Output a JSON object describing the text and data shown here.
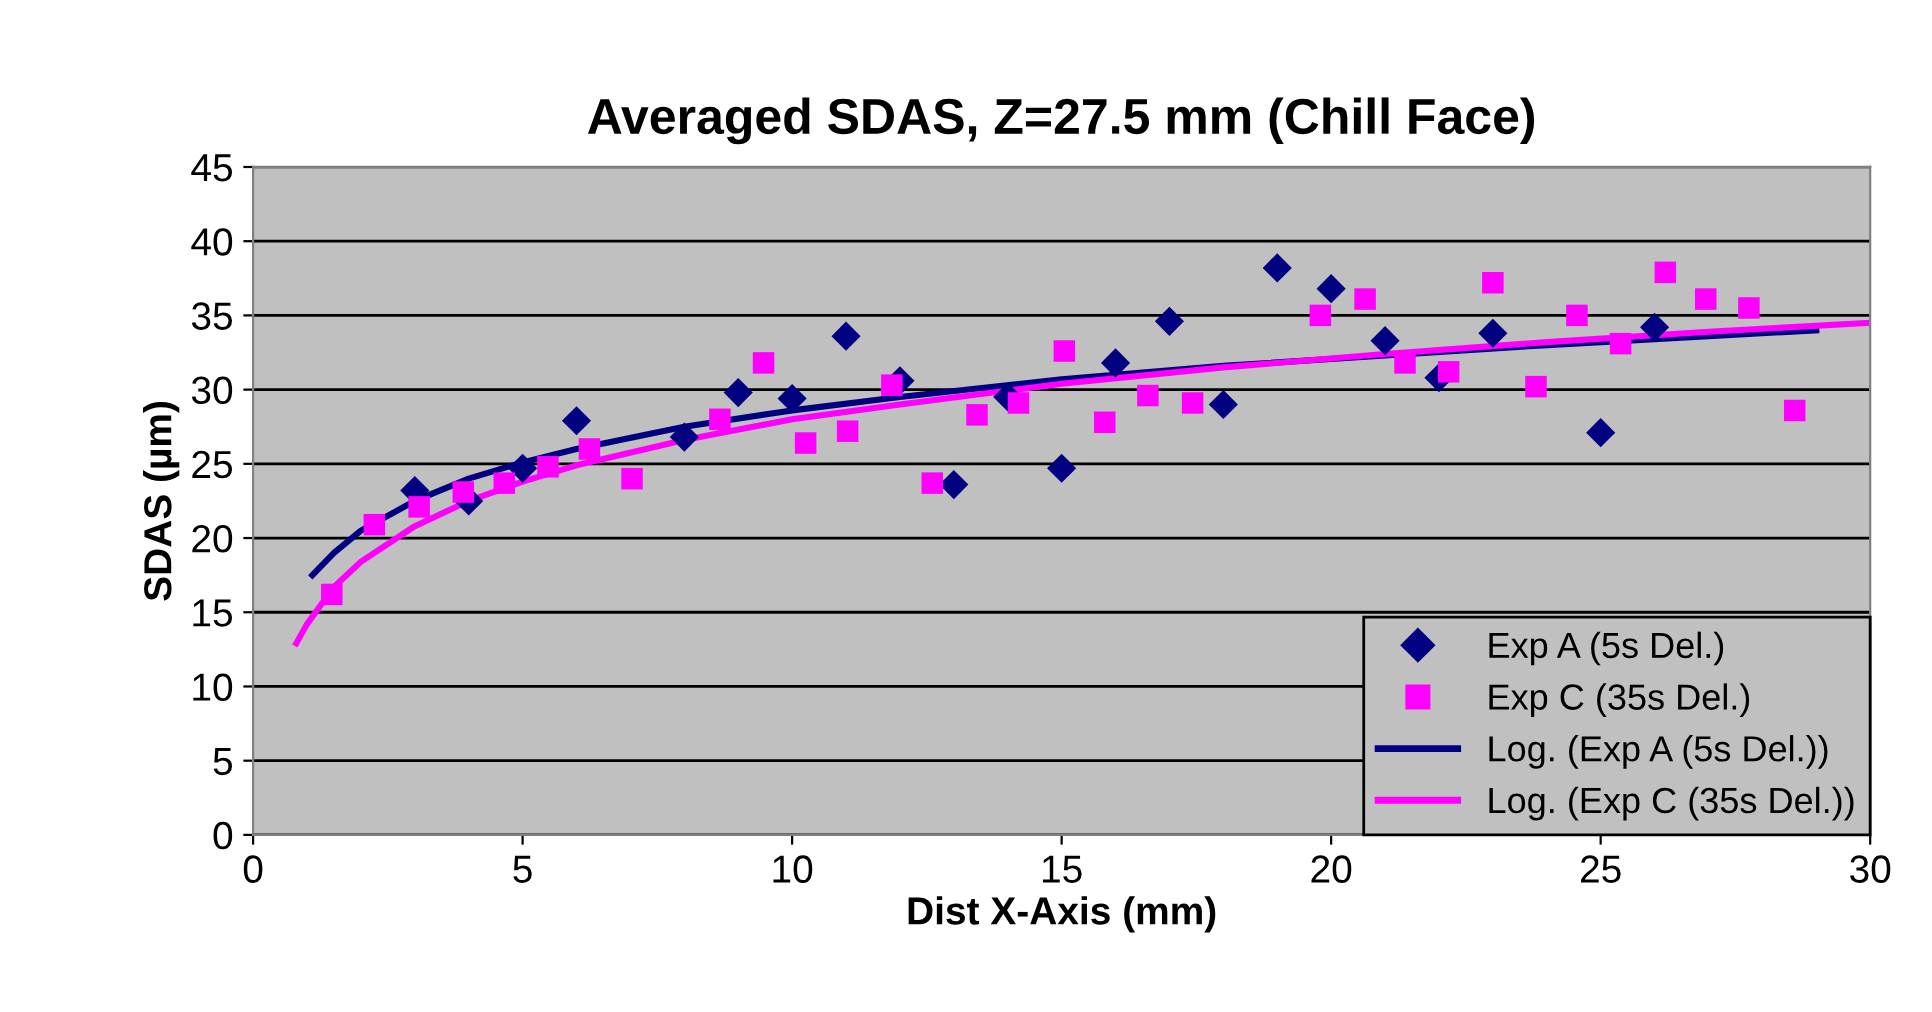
{
  "chart_data": {
    "type": "scatter",
    "title": "Averaged SDAS, Z=27.5 mm (Chill Face)",
    "xlabel": "Dist X-Axis (mm)",
    "ylabel": "SDAS (µm)",
    "xlim": [
      0,
      30
    ],
    "ylim": [
      0,
      45
    ],
    "xticks": [
      0,
      5,
      10,
      15,
      20,
      25,
      30
    ],
    "yticks": [
      0,
      5,
      10,
      15,
      20,
      25,
      30,
      35,
      40,
      45
    ],
    "grid": "y",
    "legend": "bottom right",
    "series": [
      {
        "name": "Exp A (5s Del.)",
        "marker": "diamond",
        "color": "#000080",
        "x": [
          3,
          4,
          5,
          6,
          8,
          9,
          10,
          11,
          12,
          13,
          14,
          15,
          16,
          17,
          18,
          19,
          20,
          21,
          22,
          23,
          25,
          26
        ],
        "values": [
          23.2,
          22.5,
          24.7,
          27.9,
          26.8,
          29.8,
          29.4,
          33.6,
          30.6,
          23.6,
          29.5,
          24.7,
          31.8,
          34.6,
          29.0,
          38.2,
          36.8,
          33.3,
          30.8,
          33.8,
          27.1,
          34.2
        ]
      },
      {
        "name": "Exp C (35s Del.)",
        "marker": "square",
        "color": "#ff00ff",
        "x": [
          1.46,
          2.25,
          3.08,
          3.9,
          4.66,
          5.47,
          6.24,
          7.03,
          8.66,
          9.47,
          10.25,
          11.03,
          11.85,
          12.6,
          13.43,
          14.2,
          15.05,
          15.8,
          16.6,
          17.43,
          19.8,
          20.63,
          21.37,
          22.18,
          23.0,
          23.8,
          24.56,
          25.37,
          26.2,
          26.95,
          27.75,
          28.6
        ],
        "values": [
          16.2,
          20.9,
          22.1,
          23.1,
          23.7,
          24.8,
          26.0,
          24.0,
          28.0,
          31.8,
          26.4,
          27.2,
          30.3,
          23.7,
          28.3,
          29.1,
          32.6,
          27.8,
          29.6,
          29.1,
          35.0,
          36.1,
          31.8,
          31.2,
          37.2,
          30.2,
          35.0,
          33.1,
          37.9,
          36.1,
          35.5,
          28.6
        ]
      },
      {
        "name": "Log. (Exp A (5s Del.))",
        "type": "line",
        "marker": "none",
        "line_style": "solid",
        "color": "#000080",
        "x": [
          1.1,
          1.5,
          2,
          3,
          4,
          5,
          6,
          8,
          10,
          12,
          15,
          18,
          21,
          24,
          27,
          29
        ],
        "values": [
          17.5,
          19.0,
          20.5,
          22.5,
          24.0,
          25.1,
          26.0,
          27.5,
          28.6,
          29.5,
          30.7,
          31.6,
          32.3,
          33.0,
          33.6,
          34.0
        ]
      },
      {
        "name": "Log. (Exp C (35s Del.))",
        "type": "line",
        "marker": "none",
        "line_style": "solid",
        "color": "#ff00ff",
        "x": [
          0.8,
          1,
          1.5,
          2,
          3,
          4,
          5,
          6,
          8,
          10,
          12,
          15,
          18,
          21,
          24,
          27,
          30
        ],
        "values": [
          12.9,
          14.2,
          16.7,
          18.4,
          20.8,
          22.5,
          23.8,
          24.9,
          26.6,
          28.0,
          29.0,
          30.4,
          31.5,
          32.4,
          33.2,
          33.9,
          34.5
        ]
      }
    ]
  }
}
